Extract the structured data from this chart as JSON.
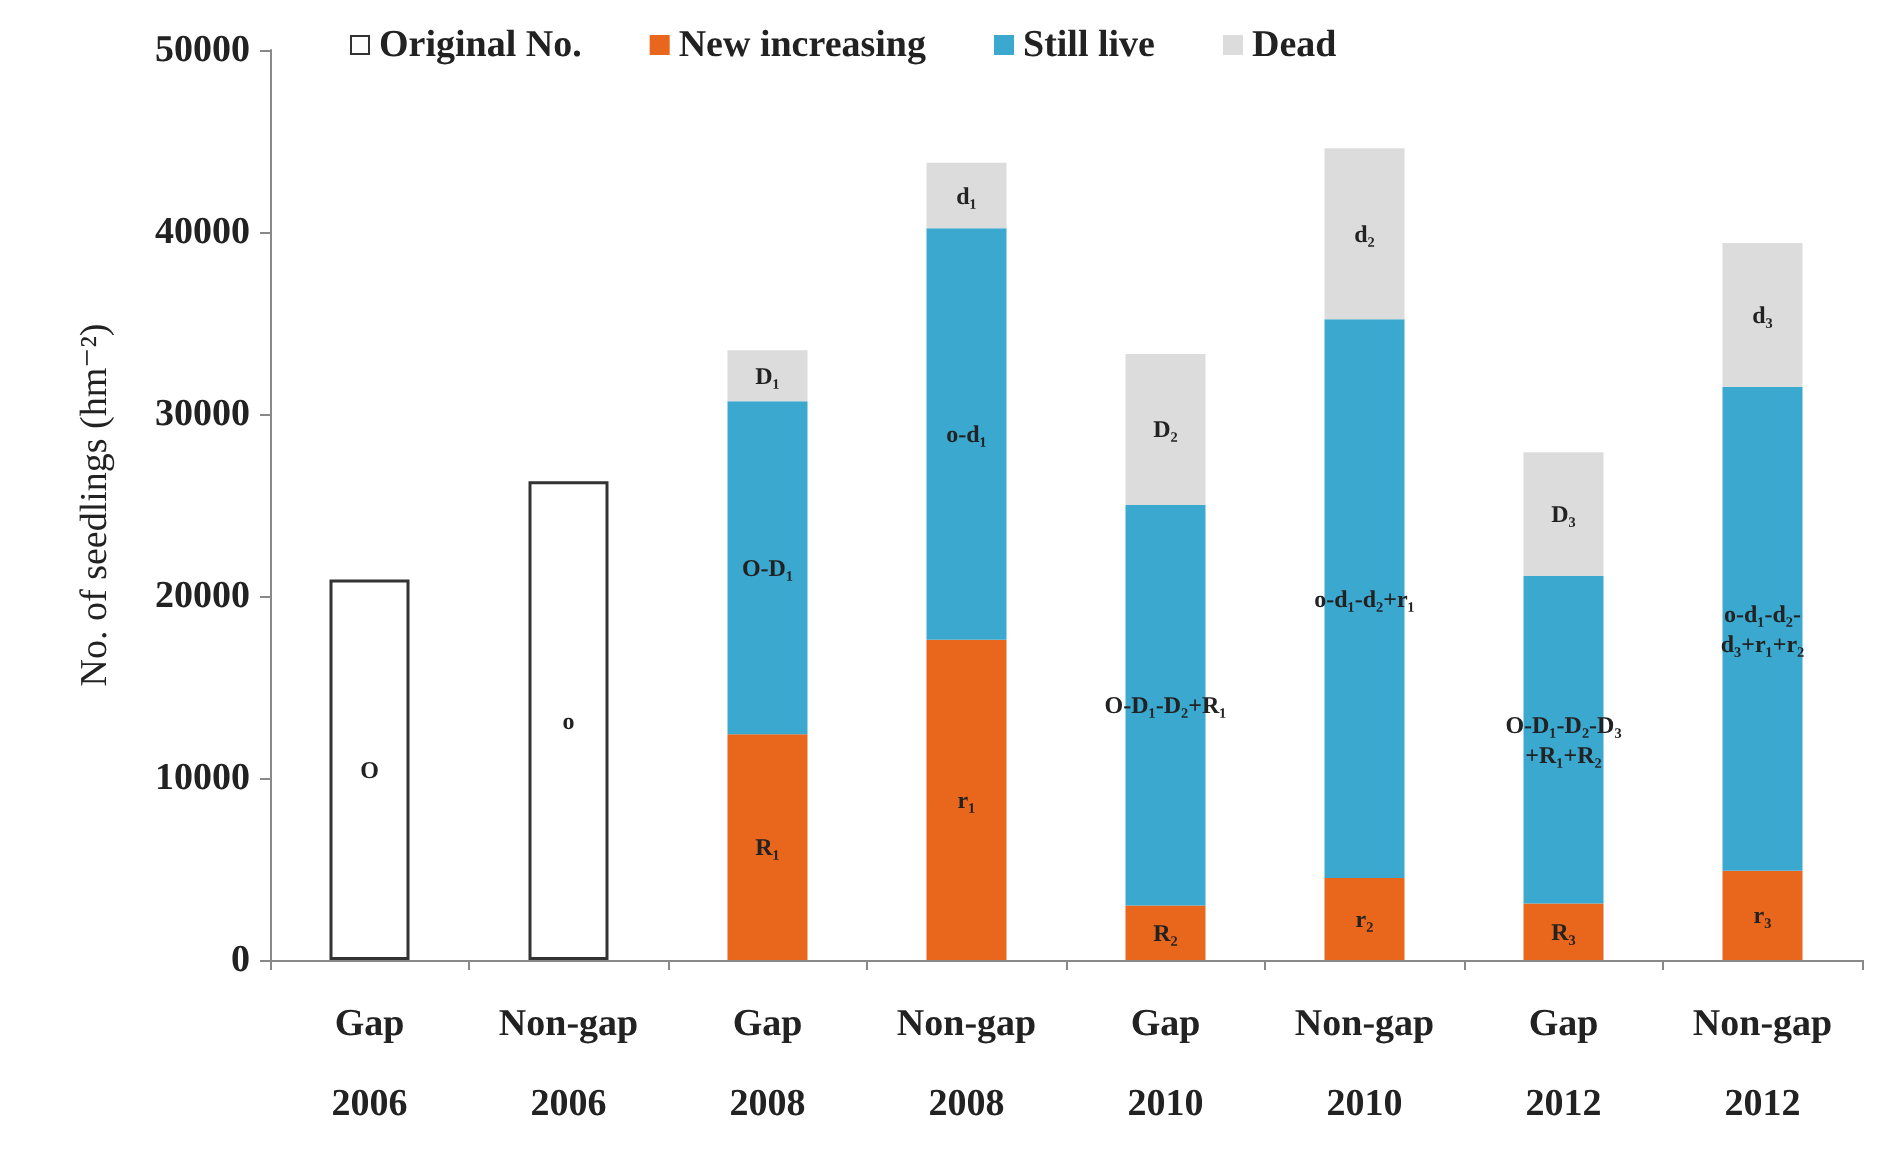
{
  "chart_data": {
    "type": "bar",
    "stacked": true,
    "ylabel": "No. of seedlings (hm⁻²)",
    "categories": [
      "Gap\n2006",
      "Non-gap\n2006",
      "Gap\n2008",
      "Non-gap\n2008",
      "Gap\n2010",
      "Non-gap\n2010",
      "Gap\n2012",
      "Non-gap\n2012"
    ],
    "ylim": [
      0,
      50000
    ],
    "yticks": [
      0,
      10000,
      20000,
      30000,
      40000,
      50000
    ],
    "grid": false,
    "legend": "top",
    "series": [
      {
        "name": "Original No.",
        "color": "#ffffff",
        "values": [
          20900,
          26300,
          null,
          null,
          null,
          null,
          null,
          null
        ],
        "value_labels": [
          "O",
          "o",
          null,
          null,
          null,
          null,
          null,
          null
        ]
      },
      {
        "name": "New increasing",
        "color": "#e8671c",
        "values": [
          null,
          null,
          12400,
          17600,
          3000,
          4500,
          3100,
          4900
        ],
        "value_labels": [
          null,
          null,
          "R₁",
          "r₁",
          "R₂",
          "r₂",
          "R₃",
          "r₃"
        ]
      },
      {
        "name": "Still live",
        "color": "#3aa8cf",
        "values": [
          null,
          null,
          18300,
          22600,
          22000,
          30700,
          18000,
          26600
        ],
        "value_labels": [
          null,
          null,
          "O-D₁",
          "o-d₁",
          "O-D₁-D₂+R₁",
          "o-d₁-d₂+r₁",
          "O-D₁-D₂-D₃\n+R₁+R₂",
          "o-d₁-d₂-\nd₃+r₁+r₂"
        ]
      },
      {
        "name": "Dead",
        "color": "#dcdcdc",
        "values": [
          null,
          null,
          2800,
          3600,
          8300,
          9400,
          6800,
          7900
        ],
        "value_labels": [
          null,
          null,
          "D₁",
          "d₁",
          "D₂",
          "d₂",
          "D₃",
          "d₃"
        ]
      }
    ]
  }
}
